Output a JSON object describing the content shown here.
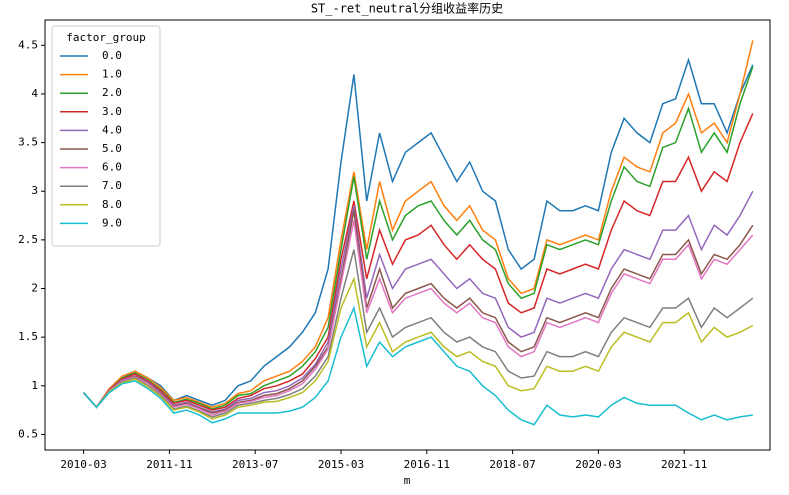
{
  "chart_data": {
    "type": "line",
    "title": "ST_-ret_neutral分组收益率历史",
    "x_label": "m",
    "x": [
      "2010-03",
      "2010-06",
      "2010-09",
      "2010-12",
      "2011-03",
      "2011-06",
      "2011-09",
      "2011-12",
      "2012-03",
      "2012-06",
      "2012-09",
      "2012-12",
      "2013-03",
      "2013-06",
      "2013-09",
      "2013-12",
      "2014-03",
      "2014-06",
      "2014-09",
      "2014-12",
      "2015-03",
      "2015-06",
      "2015-09",
      "2015-12",
      "2016-03",
      "2016-06",
      "2016-09",
      "2016-12",
      "2017-03",
      "2017-06",
      "2017-09",
      "2017-12",
      "2018-03",
      "2018-06",
      "2018-09",
      "2018-12",
      "2019-03",
      "2019-06",
      "2019-09",
      "2019-12",
      "2020-03",
      "2020-06",
      "2020-09",
      "2020-12",
      "2021-03",
      "2021-06",
      "2021-09",
      "2021-12",
      "2022-03",
      "2022-06",
      "2022-09",
      "2022-12",
      "2023-03"
    ],
    "xlim": [
      "2009-06",
      "2023-07"
    ],
    "xticks": [
      "2010-03",
      "2011-11",
      "2013-07",
      "2015-03",
      "2016-11",
      "2018-07",
      "2020-03",
      "2021-11"
    ],
    "ylim": [
      0.34,
      4.76
    ],
    "yticks": [
      0.5,
      1.0,
      1.5,
      2.0,
      2.5,
      3.0,
      3.5,
      4.0,
      4.5
    ],
    "legend_title": "factor_group",
    "legend_position": "upper left",
    "grid": false,
    "series": [
      {
        "name": "0.0",
        "color": "#1f77b4",
        "values": [
          0.93,
          0.78,
          0.97,
          1.08,
          1.15,
          1.08,
          1.0,
          0.85,
          0.9,
          0.85,
          0.8,
          0.85,
          1.0,
          1.05,
          1.2,
          1.3,
          1.4,
          1.55,
          1.75,
          2.2,
          3.3,
          4.2,
          2.9,
          3.6,
          3.1,
          3.4,
          3.5,
          3.6,
          3.35,
          3.1,
          3.3,
          3.0,
          2.9,
          2.4,
          2.2,
          2.3,
          2.9,
          2.8,
          2.8,
          2.85,
          2.8,
          3.4,
          3.75,
          3.6,
          3.5,
          3.9,
          3.95,
          4.35,
          3.9,
          3.9,
          3.6,
          4.0,
          4.3
        ]
      },
      {
        "name": "1.0",
        "color": "#ff7f0e",
        "values": [
          0.93,
          0.78,
          0.97,
          1.1,
          1.15,
          1.08,
          0.98,
          0.85,
          0.88,
          0.83,
          0.78,
          0.82,
          0.92,
          0.95,
          1.05,
          1.1,
          1.15,
          1.25,
          1.4,
          1.7,
          2.5,
          3.2,
          2.4,
          3.1,
          2.6,
          2.9,
          3.0,
          3.1,
          2.85,
          2.7,
          2.85,
          2.6,
          2.5,
          2.1,
          1.95,
          2.0,
          2.5,
          2.45,
          2.5,
          2.55,
          2.5,
          3.0,
          3.35,
          3.25,
          3.2,
          3.6,
          3.7,
          4.0,
          3.6,
          3.7,
          3.5,
          4.0,
          4.55
        ]
      },
      {
        "name": "2.0",
        "color": "#2ca02c",
        "values": [
          0.93,
          0.78,
          0.96,
          1.08,
          1.13,
          1.06,
          0.96,
          0.83,
          0.86,
          0.82,
          0.76,
          0.8,
          0.9,
          0.92,
          1.0,
          1.05,
          1.1,
          1.2,
          1.35,
          1.6,
          2.4,
          3.15,
          2.3,
          2.9,
          2.5,
          2.75,
          2.85,
          2.9,
          2.7,
          2.55,
          2.7,
          2.5,
          2.4,
          2.05,
          1.9,
          1.95,
          2.45,
          2.4,
          2.45,
          2.5,
          2.45,
          2.9,
          3.25,
          3.1,
          3.05,
          3.45,
          3.5,
          3.85,
          3.4,
          3.6,
          3.4,
          3.9,
          4.28
        ]
      },
      {
        "name": "3.0",
        "color": "#d62728",
        "values": [
          0.93,
          0.78,
          0.96,
          1.07,
          1.12,
          1.05,
          0.95,
          0.82,
          0.85,
          0.8,
          0.75,
          0.78,
          0.87,
          0.9,
          0.97,
          1.0,
          1.05,
          1.12,
          1.28,
          1.5,
          2.3,
          2.9,
          2.1,
          2.6,
          2.25,
          2.5,
          2.55,
          2.65,
          2.45,
          2.3,
          2.45,
          2.3,
          2.2,
          1.85,
          1.75,
          1.8,
          2.2,
          2.15,
          2.2,
          2.25,
          2.2,
          2.6,
          2.9,
          2.8,
          2.75,
          3.1,
          3.1,
          3.35,
          3.0,
          3.2,
          3.1,
          3.5,
          3.8
        ]
      },
      {
        "name": "4.0",
        "color": "#9467bd",
        "values": [
          0.93,
          0.78,
          0.95,
          1.06,
          1.1,
          1.04,
          0.93,
          0.8,
          0.83,
          0.78,
          0.73,
          0.76,
          0.85,
          0.87,
          0.93,
          0.95,
          1.0,
          1.08,
          1.22,
          1.45,
          2.2,
          2.85,
          1.9,
          2.35,
          2.0,
          2.2,
          2.25,
          2.3,
          2.15,
          2.0,
          2.1,
          1.95,
          1.9,
          1.6,
          1.5,
          1.55,
          1.9,
          1.85,
          1.9,
          1.95,
          1.9,
          2.2,
          2.4,
          2.35,
          2.3,
          2.6,
          2.6,
          2.75,
          2.4,
          2.65,
          2.55,
          2.75,
          3.0
        ]
      },
      {
        "name": "5.0",
        "color": "#8c564b",
        "values": [
          0.93,
          0.78,
          0.95,
          1.05,
          1.1,
          1.03,
          0.92,
          0.79,
          0.82,
          0.77,
          0.72,
          0.75,
          0.83,
          0.85,
          0.9,
          0.92,
          0.97,
          1.05,
          1.2,
          1.4,
          2.1,
          2.8,
          1.8,
          2.2,
          1.8,
          1.95,
          2.0,
          2.05,
          1.9,
          1.8,
          1.9,
          1.75,
          1.7,
          1.45,
          1.35,
          1.4,
          1.7,
          1.65,
          1.7,
          1.75,
          1.7,
          2.0,
          2.2,
          2.15,
          2.1,
          2.35,
          2.35,
          2.5,
          2.15,
          2.35,
          2.3,
          2.45,
          2.65
        ]
      },
      {
        "name": "6.0",
        "color": "#e377c2",
        "values": [
          0.93,
          0.78,
          0.95,
          1.05,
          1.09,
          1.02,
          0.91,
          0.78,
          0.81,
          0.76,
          0.7,
          0.74,
          0.82,
          0.84,
          0.88,
          0.9,
          0.95,
          1.02,
          1.17,
          1.38,
          2.05,
          2.7,
          1.75,
          2.1,
          1.75,
          1.9,
          1.95,
          2.0,
          1.85,
          1.75,
          1.85,
          1.7,
          1.65,
          1.4,
          1.3,
          1.35,
          1.65,
          1.6,
          1.65,
          1.7,
          1.65,
          1.95,
          2.15,
          2.1,
          2.05,
          2.3,
          2.3,
          2.45,
          2.1,
          2.3,
          2.25,
          2.4,
          2.55
        ]
      },
      {
        "name": "7.0",
        "color": "#7f7f7f",
        "values": [
          0.93,
          0.78,
          0.94,
          1.04,
          1.08,
          1.0,
          0.9,
          0.76,
          0.79,
          0.74,
          0.68,
          0.72,
          0.8,
          0.82,
          0.85,
          0.87,
          0.91,
          0.97,
          1.1,
          1.3,
          1.9,
          2.4,
          1.55,
          1.8,
          1.5,
          1.6,
          1.65,
          1.7,
          1.55,
          1.45,
          1.5,
          1.4,
          1.35,
          1.15,
          1.08,
          1.1,
          1.35,
          1.3,
          1.3,
          1.35,
          1.3,
          1.55,
          1.7,
          1.65,
          1.6,
          1.8,
          1.8,
          1.9,
          1.6,
          1.8,
          1.7,
          1.8,
          1.9
        ]
      },
      {
        "name": "8.0",
        "color": "#bcbd22",
        "values": [
          0.93,
          0.78,
          0.94,
          1.03,
          1.07,
          0.99,
          0.89,
          0.75,
          0.78,
          0.73,
          0.66,
          0.7,
          0.78,
          0.8,
          0.83,
          0.84,
          0.88,
          0.93,
          1.05,
          1.25,
          1.8,
          2.1,
          1.4,
          1.65,
          1.35,
          1.45,
          1.5,
          1.55,
          1.4,
          1.3,
          1.35,
          1.25,
          1.2,
          1.0,
          0.95,
          0.97,
          1.2,
          1.15,
          1.15,
          1.2,
          1.15,
          1.4,
          1.55,
          1.5,
          1.45,
          1.65,
          1.65,
          1.75,
          1.45,
          1.6,
          1.5,
          1.55,
          1.62
        ]
      },
      {
        "name": "9.0",
        "color": "#17becf",
        "values": [
          0.93,
          0.78,
          0.93,
          1.02,
          1.05,
          0.97,
          0.87,
          0.72,
          0.75,
          0.7,
          0.62,
          0.66,
          0.72,
          0.72,
          0.72,
          0.72,
          0.74,
          0.78,
          0.88,
          1.05,
          1.5,
          1.8,
          1.2,
          1.45,
          1.3,
          1.4,
          1.45,
          1.5,
          1.35,
          1.2,
          1.15,
          1.0,
          0.9,
          0.75,
          0.65,
          0.6,
          0.8,
          0.7,
          0.68,
          0.7,
          0.68,
          0.8,
          0.88,
          0.82,
          0.8,
          0.8,
          0.8,
          0.72,
          0.65,
          0.7,
          0.65,
          0.68,
          0.7
        ]
      }
    ]
  }
}
